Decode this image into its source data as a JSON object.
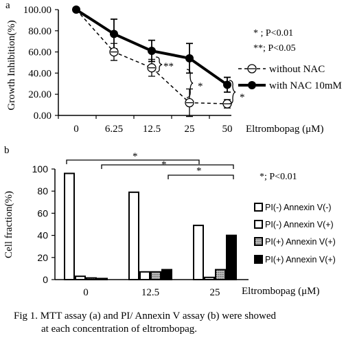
{
  "chart_data": [
    {
      "type": "line",
      "panel_label": "a",
      "ylabel": "Growth Inhibition(%)",
      "xlabel": "Eltrombopag (μM)",
      "categories": [
        "0",
        "6.25",
        "12.5",
        "25",
        "50"
      ],
      "ylim": [
        0,
        100
      ],
      "yticks": [
        "0.00",
        "20.00",
        "40.00",
        "60.00",
        "80.00",
        "100.00"
      ],
      "series": [
        {
          "name": "without NAC",
          "values": [
            100,
            60,
            45,
            12,
            11
          ],
          "errors": [
            0,
            8,
            8,
            13,
            4
          ]
        },
        {
          "name": "with NAC 10mM",
          "values": [
            100,
            77,
            61,
            54,
            29
          ],
          "errors": [
            0,
            14,
            10,
            14,
            7
          ]
        }
      ],
      "significance_legend": [
        "* ; P<0.01",
        "**; P<0.05"
      ],
      "annotations": [
        "**",
        "*",
        "*"
      ]
    },
    {
      "type": "bar",
      "panel_label": "b",
      "ylabel": "Cell fraction(%)",
      "xlabel": "Eltrombopag (μM)",
      "categories": [
        "0",
        "12.5",
        "25"
      ],
      "ylim": [
        0,
        100
      ],
      "yticks": [
        "0",
        "20",
        "40",
        "60",
        "80",
        "100"
      ],
      "series": [
        {
          "name": "PI(-) Annexin V(-)",
          "values": [
            96,
            79,
            49
          ]
        },
        {
          "name": "PI(-) Annexin V(+)",
          "values": [
            3,
            7,
            2
          ]
        },
        {
          "name": "PI(+) Annexin V(+)",
          "values": [
            1.5,
            7,
            9
          ]
        },
        {
          "name": "PI(+) Annexin V(+)",
          "values": [
            1,
            9,
            40
          ]
        }
      ],
      "significance_legend": "*; P<0.01",
      "annotations": [
        "*",
        "*",
        "*"
      ]
    }
  ],
  "caption": {
    "line1": "Fig 1. MTT assay (a) and PI/ Annexin V assay (b) were showed",
    "line2": "at each concentration of eltrombopag."
  },
  "colors": {
    "ink": "#000000",
    "bar_open": "#ffffff",
    "bar_small": "#ffffff",
    "bar_hatch": "#7f7f7f",
    "bar_solid": "#000000"
  }
}
